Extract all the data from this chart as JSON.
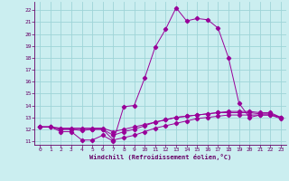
{
  "xlabel": "Windchill (Refroidissement éolien,°C)",
  "bg_color": "#cbeef0",
  "grid_color": "#9ed4d8",
  "line_color": "#990099",
  "axis_color": "#660066",
  "xlim": [
    -0.5,
    23.5
  ],
  "ylim": [
    10.7,
    22.7
  ],
  "xticks": [
    0,
    1,
    2,
    3,
    4,
    5,
    6,
    7,
    8,
    9,
    10,
    11,
    12,
    13,
    14,
    15,
    16,
    17,
    18,
    19,
    20,
    21,
    22,
    23
  ],
  "yticks": [
    11,
    12,
    13,
    14,
    15,
    16,
    17,
    18,
    19,
    20,
    21,
    22
  ],
  "series": [
    [
      12.2,
      12.2,
      11.8,
      11.8,
      11.1,
      11.1,
      11.5,
      11.0,
      13.9,
      14.0,
      16.3,
      18.9,
      20.4,
      22.2,
      21.1,
      21.3,
      21.2,
      20.5,
      18.0,
      14.2,
      13.0,
      13.2,
      13.2,
      12.9
    ],
    [
      12.2,
      12.2,
      12.0,
      12.0,
      11.9,
      12.0,
      12.0,
      11.1,
      11.3,
      11.5,
      11.8,
      12.1,
      12.3,
      12.5,
      12.7,
      12.9,
      13.0,
      13.1,
      13.2,
      13.2,
      13.2,
      13.2,
      13.2,
      13.0
    ],
    [
      12.2,
      12.2,
      12.0,
      12.0,
      12.0,
      12.0,
      12.0,
      11.5,
      11.8,
      12.0,
      12.3,
      12.6,
      12.8,
      13.0,
      13.1,
      13.2,
      13.3,
      13.4,
      13.4,
      13.4,
      13.4,
      13.3,
      13.3,
      13.0
    ],
    [
      12.2,
      12.2,
      12.1,
      12.1,
      12.1,
      12.1,
      12.1,
      11.8,
      12.0,
      12.2,
      12.4,
      12.6,
      12.8,
      13.0,
      13.1,
      13.2,
      13.3,
      13.4,
      13.5,
      13.5,
      13.5,
      13.4,
      13.4,
      13.0
    ]
  ]
}
